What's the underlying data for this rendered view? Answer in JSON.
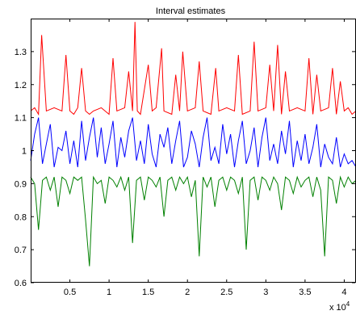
{
  "chart_data": {
    "type": "line",
    "title": "Interval estimates",
    "xlabel": "",
    "ylabel": "",
    "x_exponent_label": "x 10",
    "x_exponent_power": "4",
    "xlim": [
      0,
      41500
    ],
    "ylim": [
      0.6,
      1.4
    ],
    "xticks": [
      5000,
      10000,
      15000,
      20000,
      25000,
      30000,
      35000,
      40000
    ],
    "xtick_labels": [
      "0.5",
      "1",
      "1.5",
      "2",
      "2.5",
      "3",
      "3.5",
      "4"
    ],
    "yticks": [
      0.6,
      0.7,
      0.8,
      0.9,
      1.0,
      1.1,
      1.2,
      1.3
    ],
    "ytick_labels": [
      "0.6",
      "0.7",
      "0.8",
      "0.9",
      "1",
      "1.1",
      "1.2",
      "1.3"
    ],
    "grid": false,
    "legend": "none",
    "series": [
      {
        "color": "#ff0000",
        "x": [
          0,
          500,
          1000,
          1400,
          2000,
          3000,
          4000,
          4500,
          5000,
          5500,
          6000,
          6500,
          7000,
          7500,
          8000,
          9000,
          10000,
          10500,
          11000,
          12000,
          12500,
          13000,
          13300,
          13600,
          14000,
          15000,
          15500,
          16000,
          16700,
          17000,
          18000,
          18500,
          19000,
          19400,
          20000,
          21000,
          21500,
          22000,
          23000,
          23600,
          24000,
          25000,
          26000,
          26500,
          27000,
          28000,
          28500,
          29000,
          30000,
          30500,
          31000,
          31500,
          32000,
          32500,
          33000,
          34000,
          35000,
          35500,
          36000,
          36500,
          37000,
          38000,
          38500,
          39000,
          39500,
          40000,
          40500,
          41000,
          41500
        ],
        "values": [
          1.12,
          1.13,
          1.11,
          1.35,
          1.12,
          1.13,
          1.12,
          1.29,
          1.12,
          1.11,
          1.13,
          1.25,
          1.12,
          1.11,
          1.12,
          1.13,
          1.11,
          1.28,
          1.12,
          1.13,
          1.24,
          1.12,
          1.39,
          1.12,
          1.11,
          1.26,
          1.12,
          1.13,
          1.31,
          1.12,
          1.11,
          1.23,
          1.12,
          1.3,
          1.12,
          1.13,
          1.27,
          1.12,
          1.11,
          1.25,
          1.12,
          1.13,
          1.12,
          1.29,
          1.11,
          1.12,
          1.33,
          1.12,
          1.13,
          1.26,
          1.12,
          1.32,
          1.11,
          1.24,
          1.12,
          1.13,
          1.12,
          1.28,
          1.11,
          1.23,
          1.12,
          1.13,
          1.25,
          1.11,
          1.21,
          1.12,
          1.13,
          1.11,
          1.12
        ]
      },
      {
        "color": "#0000ff",
        "x": [
          0,
          500,
          1000,
          1500,
          2000,
          2500,
          3000,
          3500,
          4000,
          4500,
          5000,
          5500,
          6000,
          6500,
          7000,
          7500,
          8000,
          8500,
          9000,
          9500,
          10000,
          10500,
          11000,
          11500,
          12000,
          12500,
          13000,
          13500,
          14000,
          14500,
          15000,
          15500,
          16000,
          16500,
          17000,
          17500,
          18000,
          18500,
          19000,
          19500,
          20000,
          20500,
          21000,
          21500,
          22000,
          22500,
          23000,
          23500,
          24000,
          24500,
          25000,
          25500,
          26000,
          26500,
          27000,
          27500,
          28000,
          28500,
          29000,
          29500,
          30000,
          30500,
          31000,
          31500,
          32000,
          32500,
          33000,
          33500,
          34000,
          34500,
          35000,
          35500,
          36000,
          36500,
          37000,
          37500,
          38000,
          38500,
          39000,
          39500,
          40000,
          40500,
          41000,
          41500
        ],
        "values": [
          0.97,
          1.05,
          1.1,
          0.96,
          1.02,
          1.08,
          0.95,
          1.01,
          1.0,
          1.06,
          0.96,
          1.03,
          0.95,
          1.09,
          0.97,
          1.04,
          1.1,
          0.98,
          1.07,
          0.96,
          1.02,
          1.09,
          0.95,
          1.04,
          0.98,
          1.06,
          1.1,
          0.97,
          1.03,
          0.96,
          1.08,
          0.99,
          0.95,
          1.05,
          1.01,
          1.07,
          0.96,
          1.03,
          1.09,
          0.95,
          0.98,
          1.06,
          1.02,
          0.95,
          1.04,
          1.1,
          0.97,
          1.01,
          0.96,
          1.08,
          0.99,
          1.05,
          0.95,
          1.03,
          1.09,
          0.96,
          1.0,
          1.07,
          0.95,
          1.04,
          1.1,
          0.97,
          1.02,
          0.96,
          1.06,
          0.99,
          1.09,
          0.95,
          1.03,
          0.97,
          1.05,
          0.96,
          1.01,
          1.08,
          0.95,
          1.02,
          0.98,
          0.96,
          1.04,
          0.95,
          0.99,
          0.96,
          0.97,
          0.95
        ]
      },
      {
        "color": "#008000",
        "x": [
          0,
          500,
          1000,
          1500,
          2000,
          2500,
          3000,
          3500,
          4000,
          4500,
          5000,
          5500,
          6000,
          6500,
          7000,
          7500,
          8000,
          8500,
          9000,
          9500,
          10000,
          10500,
          11000,
          11500,
          12000,
          12500,
          13000,
          13500,
          14000,
          14500,
          15000,
          15500,
          16000,
          16500,
          17000,
          17500,
          18000,
          18500,
          19000,
          19500,
          20000,
          20500,
          21000,
          21500,
          22000,
          22500,
          23000,
          23500,
          24000,
          24500,
          25000,
          25500,
          26000,
          26500,
          27000,
          27500,
          28000,
          28500,
          29000,
          29500,
          30000,
          30500,
          31000,
          31500,
          32000,
          32500,
          33000,
          33500,
          34000,
          34500,
          35000,
          35500,
          36000,
          36500,
          37000,
          37500,
          38000,
          38500,
          39000,
          39500,
          40000,
          40500,
          41000,
          41500
        ],
        "values": [
          0.92,
          0.9,
          0.76,
          0.91,
          0.92,
          0.88,
          0.92,
          0.83,
          0.92,
          0.91,
          0.87,
          0.92,
          0.91,
          0.92,
          0.79,
          0.65,
          0.92,
          0.9,
          0.91,
          0.84,
          0.92,
          0.91,
          0.89,
          0.92,
          0.88,
          0.92,
          0.72,
          0.91,
          0.92,
          0.85,
          0.92,
          0.91,
          0.89,
          0.92,
          0.8,
          0.91,
          0.92,
          0.88,
          0.92,
          0.9,
          0.92,
          0.86,
          0.91,
          0.68,
          0.92,
          0.89,
          0.92,
          0.83,
          0.91,
          0.92,
          0.88,
          0.92,
          0.91,
          0.87,
          0.92,
          0.7,
          0.91,
          0.92,
          0.85,
          0.92,
          0.91,
          0.88,
          0.92,
          0.9,
          0.82,
          0.92,
          0.91,
          0.87,
          0.92,
          0.89,
          0.91,
          0.92,
          0.86,
          0.92,
          0.88,
          0.68,
          0.92,
          0.91,
          0.84,
          0.92,
          0.89,
          0.92,
          0.9,
          0.91
        ]
      }
    ]
  }
}
